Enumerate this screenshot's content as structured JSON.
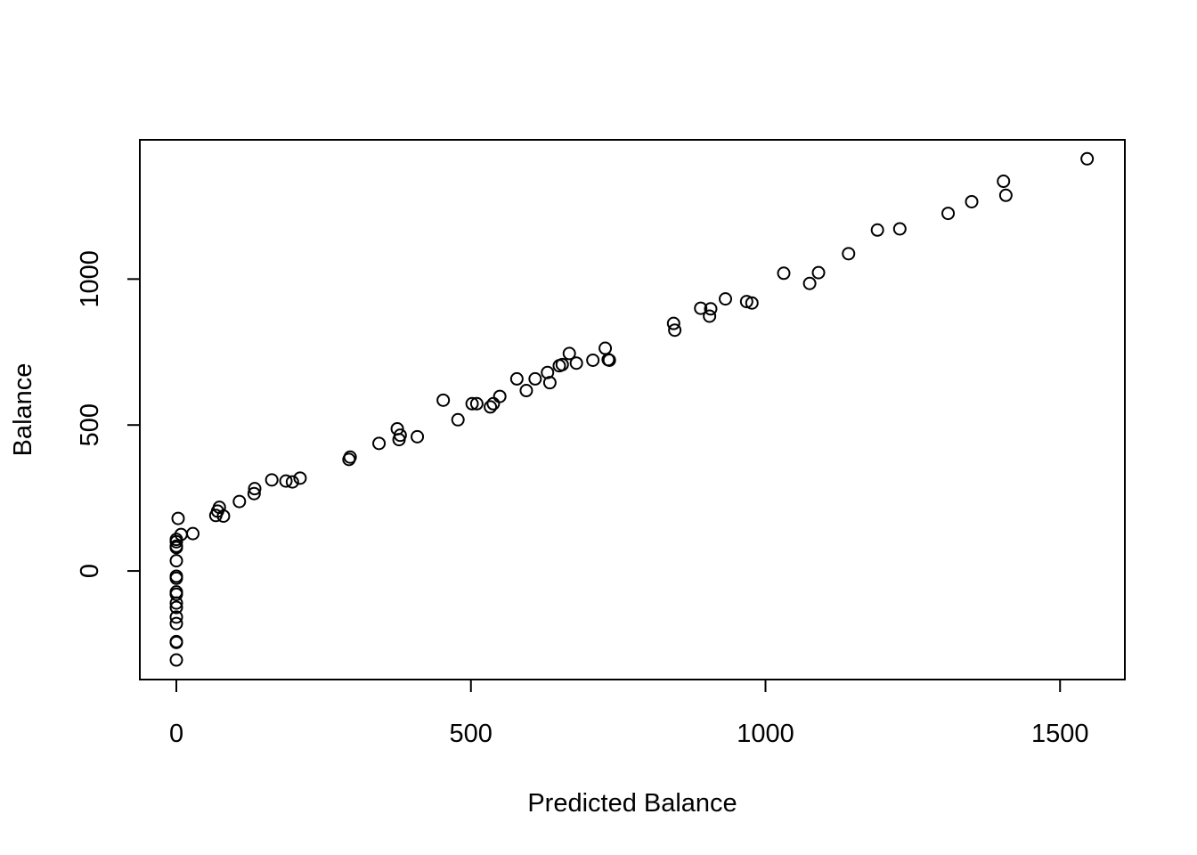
{
  "chart_data": {
    "type": "scatter",
    "title": "",
    "xlabel": "Predicted Balance",
    "ylabel": "Balance",
    "xlim": [
      -62,
      1610
    ],
    "ylim": [
      -372,
      1477
    ],
    "x_ticks": [
      0,
      500,
      1000,
      1500
    ],
    "x_tick_labels": [
      "0",
      "500",
      "1000",
      "1500"
    ],
    "y_ticks": [
      0,
      500,
      1000
    ],
    "y_tick_labels": [
      "0",
      "500",
      "1000"
    ],
    "grid": false,
    "legend": "none",
    "points": [
      {
        "x": 0,
        "y": -305
      },
      {
        "x": 0,
        "y": -245
      },
      {
        "x": 0,
        "y": -242
      },
      {
        "x": 0,
        "y": -180
      },
      {
        "x": 0,
        "y": -158
      },
      {
        "x": 0,
        "y": -125
      },
      {
        "x": 0,
        "y": -110
      },
      {
        "x": 0,
        "y": -80
      },
      {
        "x": 0,
        "y": -72
      },
      {
        "x": 0,
        "y": -25
      },
      {
        "x": 0,
        "y": -18
      },
      {
        "x": 0,
        "y": 35
      },
      {
        "x": 0,
        "y": 80
      },
      {
        "x": 0,
        "y": 85
      },
      {
        "x": 0,
        "y": 100
      },
      {
        "x": 0,
        "y": 108
      },
      {
        "x": 3,
        "y": 180
      },
      {
        "x": 8,
        "y": 125
      },
      {
        "x": 28,
        "y": 128
      },
      {
        "x": 67,
        "y": 190
      },
      {
        "x": 70,
        "y": 205
      },
      {
        "x": 73,
        "y": 218
      },
      {
        "x": 80,
        "y": 188
      },
      {
        "x": 107,
        "y": 238
      },
      {
        "x": 132,
        "y": 265
      },
      {
        "x": 133,
        "y": 282
      },
      {
        "x": 162,
        "y": 312
      },
      {
        "x": 186,
        "y": 308
      },
      {
        "x": 197,
        "y": 305
      },
      {
        "x": 210,
        "y": 318
      },
      {
        "x": 293,
        "y": 382
      },
      {
        "x": 295,
        "y": 390
      },
      {
        "x": 344,
        "y": 437
      },
      {
        "x": 375,
        "y": 487
      },
      {
        "x": 378,
        "y": 450
      },
      {
        "x": 380,
        "y": 465
      },
      {
        "x": 409,
        "y": 460
      },
      {
        "x": 453,
        "y": 585
      },
      {
        "x": 478,
        "y": 518
      },
      {
        "x": 502,
        "y": 573
      },
      {
        "x": 510,
        "y": 573
      },
      {
        "x": 533,
        "y": 562
      },
      {
        "x": 538,
        "y": 573
      },
      {
        "x": 549,
        "y": 598
      },
      {
        "x": 578,
        "y": 658
      },
      {
        "x": 594,
        "y": 618
      },
      {
        "x": 609,
        "y": 658
      },
      {
        "x": 630,
        "y": 680
      },
      {
        "x": 634,
        "y": 645
      },
      {
        "x": 650,
        "y": 703
      },
      {
        "x": 655,
        "y": 707
      },
      {
        "x": 667,
        "y": 745
      },
      {
        "x": 679,
        "y": 712
      },
      {
        "x": 707,
        "y": 722
      },
      {
        "x": 728,
        "y": 763
      },
      {
        "x": 733,
        "y": 724
      },
      {
        "x": 735,
        "y": 722
      },
      {
        "x": 844,
        "y": 848
      },
      {
        "x": 846,
        "y": 825
      },
      {
        "x": 890,
        "y": 900
      },
      {
        "x": 905,
        "y": 873
      },
      {
        "x": 907,
        "y": 898
      },
      {
        "x": 932,
        "y": 932
      },
      {
        "x": 968,
        "y": 923
      },
      {
        "x": 977,
        "y": 918
      },
      {
        "x": 1031,
        "y": 1020
      },
      {
        "x": 1075,
        "y": 985
      },
      {
        "x": 1090,
        "y": 1022
      },
      {
        "x": 1141,
        "y": 1087
      },
      {
        "x": 1190,
        "y": 1168
      },
      {
        "x": 1228,
        "y": 1172
      },
      {
        "x": 1310,
        "y": 1225
      },
      {
        "x": 1350,
        "y": 1265
      },
      {
        "x": 1404,
        "y": 1335
      },
      {
        "x": 1408,
        "y": 1287
      },
      {
        "x": 1546,
        "y": 1412
      }
    ]
  }
}
